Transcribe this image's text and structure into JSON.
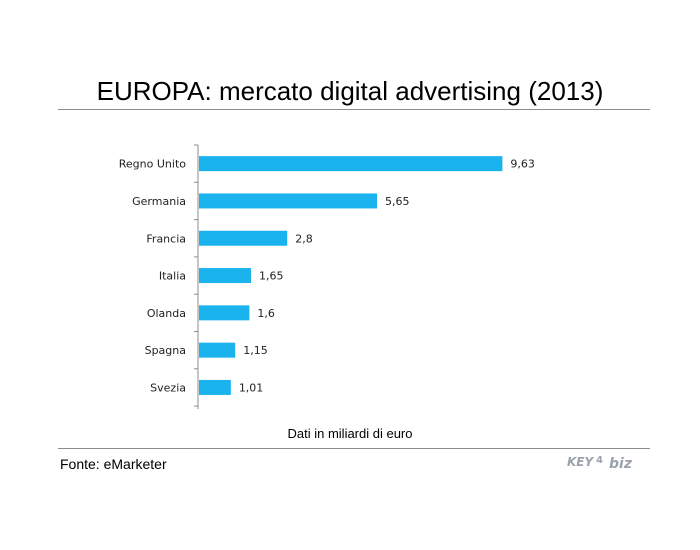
{
  "title": "EUROPA: mercato digital advertising (2013)",
  "note": "Dati in miliardi di euro",
  "source": "Fonte: eMarketer",
  "logo": {
    "text_left": "KEY",
    "text_mid": "4",
    "text_right": "biz",
    "color": "#9aa3ad"
  },
  "colors": {
    "bar": "#1ab3ee",
    "axis": "#8c8c8c",
    "rule": "#8c8c8c"
  },
  "chart_data": {
    "type": "bar",
    "orientation": "horizontal",
    "categories": [
      "Regno Unito",
      "Germania",
      "Francia",
      "Italia",
      "Olanda",
      "Spagna",
      "Svezia"
    ],
    "values": [
      9.63,
      5.65,
      2.8,
      1.65,
      1.6,
      1.15,
      1.01
    ],
    "value_labels": [
      "9,63",
      "5,65",
      "2,8",
      "1,65",
      "1,6",
      "1,15",
      "1,01"
    ],
    "xlabel": "",
    "ylabel": "",
    "xlim": [
      0,
      10
    ],
    "grid": false,
    "legend": "none"
  }
}
